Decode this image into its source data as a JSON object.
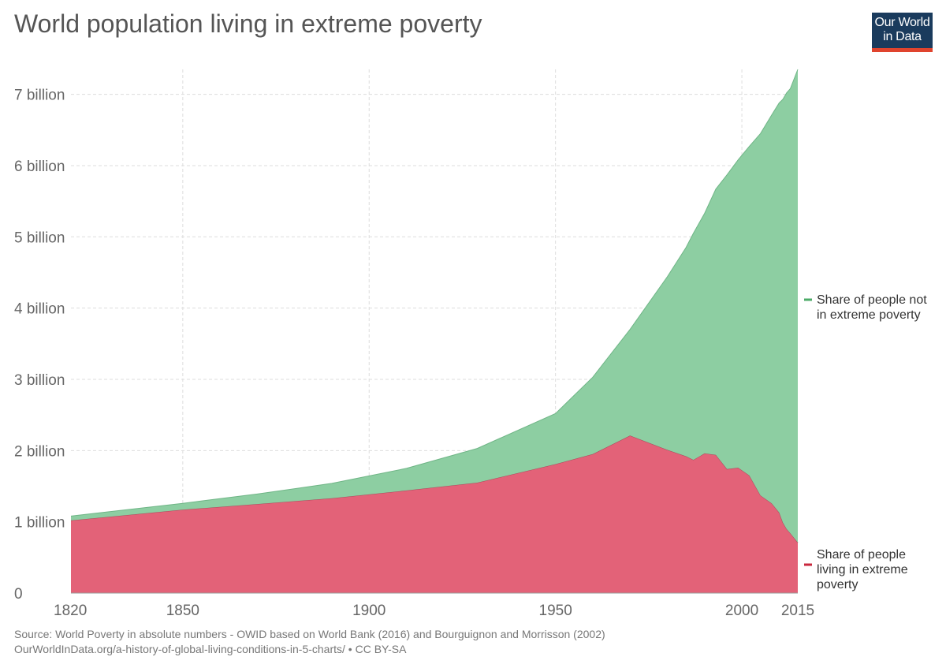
{
  "header": {
    "title": "World population living in extreme poverty"
  },
  "logo": {
    "line1": "Our World",
    "line2": "in Data",
    "colors": {
      "background": "#1a3b5d",
      "bar": "#e0442e"
    }
  },
  "footer": {
    "source": "Source: World Poverty in absolute numbers - OWID based on World Bank (2016) and Bourguignon and Morrisson (2002)",
    "link": "OurWorldInData.org/a-history-of-global-living-conditions-in-5-charts/ • CC BY-SA"
  },
  "chart_data": {
    "type": "area",
    "stacked": true,
    "title": "World population living in extreme poverty",
    "xlabel": "",
    "ylabel": "",
    "xlim": [
      1820,
      2015
    ],
    "ylim": [
      0,
      7350000000
    ],
    "grid": true,
    "legend_position": "right",
    "x_ticks": [
      {
        "value": 1820,
        "label": "1820"
      },
      {
        "value": 1850,
        "label": "1850"
      },
      {
        "value": 1900,
        "label": "1900"
      },
      {
        "value": 1950,
        "label": "1950"
      },
      {
        "value": 2000,
        "label": "2000"
      },
      {
        "value": 2015,
        "label": "2015"
      }
    ],
    "y_ticks": [
      {
        "value": 0,
        "label": "0"
      },
      {
        "value": 1000000000,
        "label": "1 billion"
      },
      {
        "value": 2000000000,
        "label": "2 billion"
      },
      {
        "value": 3000000000,
        "label": "3 billion"
      },
      {
        "value": 4000000000,
        "label": "4 billion"
      },
      {
        "value": 5000000000,
        "label": "5 billion"
      },
      {
        "value": 6000000000,
        "label": "6 billion"
      },
      {
        "value": 7000000000,
        "label": "7 billion"
      }
    ],
    "x": [
      1820,
      1850,
      1870,
      1890,
      1910,
      1929,
      1950,
      1960,
      1970,
      1980,
      1985,
      1987,
      1990,
      1993,
      1996,
      1999,
      2002,
      2005,
      2008,
      2010,
      2011,
      2012,
      2013,
      2015
    ],
    "series": [
      {
        "name": "Share of people living in extreme poverty",
        "color": "#e36278",
        "legend_color": "#c9283e",
        "values": [
          1020000000,
          1170000000,
          1250000000,
          1330000000,
          1440000000,
          1550000000,
          1810000000,
          1950000000,
          2210000000,
          2010000000,
          1920000000,
          1870000000,
          1960000000,
          1940000000,
          1740000000,
          1760000000,
          1650000000,
          1370000000,
          1260000000,
          1130000000,
          990000000,
          900000000,
          840000000,
          710000000
        ]
      },
      {
        "name": "Share of people not in extreme poverty",
        "color": "#8dcea2",
        "legend_color": "#4dab68",
        "values": [
          60000000,
          90000000,
          140000000,
          210000000,
          310000000,
          480000000,
          710000000,
          1080000000,
          1490000000,
          2430000000,
          2930000000,
          3180000000,
          3370000000,
          3730000000,
          4130000000,
          4320000000,
          4620000000,
          5080000000,
          5450000000,
          5750000000,
          5940000000,
          6120000000,
          6240000000,
          6640000000
        ]
      }
    ]
  }
}
